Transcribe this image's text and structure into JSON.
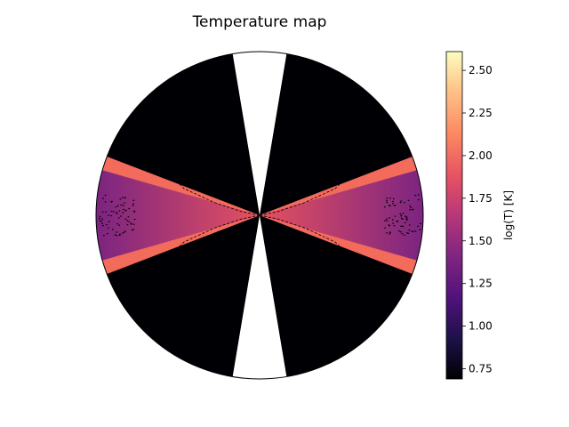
{
  "chart_data": {
    "type": "heatmap",
    "projection": "polar-disc",
    "title": "Temperature map",
    "colorbar": {
      "label": "log(T) [K]",
      "colormap": "magma",
      "range": [
        0.69,
        2.61
      ],
      "ticks": [
        0.75,
        1.0,
        1.25,
        1.5,
        1.75,
        2.0,
        2.25,
        2.5
      ],
      "tick_labels": [
        "0.75",
        "1.00",
        "1.25",
        "1.50",
        "1.75",
        "2.00",
        "2.25",
        "2.50"
      ]
    },
    "regions": [
      {
        "name": "polar-cold-zone",
        "value": 0.69
      },
      {
        "name": "disc-midplane",
        "value": 1.45
      },
      {
        "name": "disc-surface-layer",
        "value": 2.0
      }
    ],
    "polar_gap_half_angle_deg": 9.5,
    "disc_half_opening_deg": 21,
    "contours": "dashed black iso-temperature lines",
    "colors": {
      "background": "#000004",
      "outline": "#000000"
    }
  }
}
